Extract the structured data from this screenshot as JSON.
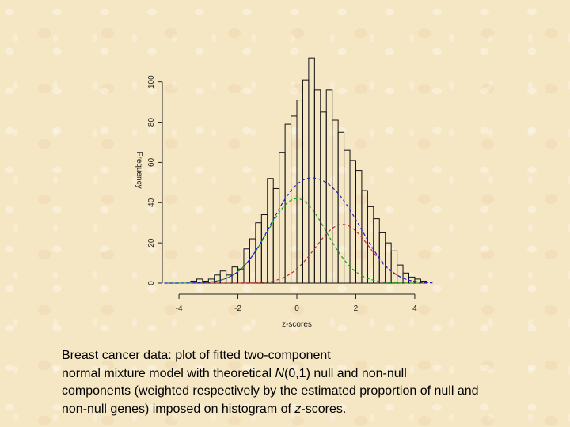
{
  "chart_data": {
    "type": "bar",
    "xlabel": "z-scores",
    "ylabel": "Frequency",
    "xlim": [
      -4.7,
      4.7
    ],
    "ylim": [
      0,
      116
    ],
    "x_ticks": [
      -4,
      -2,
      0,
      2,
      4
    ],
    "y_ticks": [
      0,
      20,
      40,
      60,
      80,
      100
    ],
    "bin_width": 0.2,
    "bins": [
      {
        "start": -3.6,
        "count": 1
      },
      {
        "start": -3.4,
        "count": 2
      },
      {
        "start": -3.2,
        "count": 1
      },
      {
        "start": -3.0,
        "count": 2
      },
      {
        "start": -2.8,
        "count": 4
      },
      {
        "start": -2.6,
        "count": 6
      },
      {
        "start": -2.4,
        "count": 4
      },
      {
        "start": -2.2,
        "count": 8
      },
      {
        "start": -2.0,
        "count": 7
      },
      {
        "start": -1.8,
        "count": 17
      },
      {
        "start": -1.6,
        "count": 22
      },
      {
        "start": -1.4,
        "count": 30
      },
      {
        "start": -1.2,
        "count": 34
      },
      {
        "start": -1.0,
        "count": 52
      },
      {
        "start": -0.8,
        "count": 47
      },
      {
        "start": -0.6,
        "count": 65
      },
      {
        "start": -0.4,
        "count": 79
      },
      {
        "start": -0.2,
        "count": 83
      },
      {
        "start": 0.0,
        "count": 91
      },
      {
        "start": 0.2,
        "count": 101
      },
      {
        "start": 0.4,
        "count": 112
      },
      {
        "start": 0.6,
        "count": 96
      },
      {
        "start": 0.8,
        "count": 85
      },
      {
        "start": 1.0,
        "count": 96
      },
      {
        "start": 1.2,
        "count": 81
      },
      {
        "start": 1.4,
        "count": 75
      },
      {
        "start": 1.6,
        "count": 66
      },
      {
        "start": 1.8,
        "count": 61
      },
      {
        "start": 2.0,
        "count": 56
      },
      {
        "start": 2.2,
        "count": 46
      },
      {
        "start": 2.4,
        "count": 38
      },
      {
        "start": 2.6,
        "count": 32
      },
      {
        "start": 2.8,
        "count": 25
      },
      {
        "start": 3.0,
        "count": 20
      },
      {
        "start": 3.2,
        "count": 16
      },
      {
        "start": 3.4,
        "count": 9
      },
      {
        "start": 3.6,
        "count": 5
      },
      {
        "start": 3.8,
        "count": 3
      },
      {
        "start": 4.0,
        "count": 2
      },
      {
        "start": 4.2,
        "count": 1
      }
    ],
    "curves": [
      {
        "name": "null",
        "color": "#1aa21a",
        "dash": "dashed",
        "weight": 42,
        "mean": 0,
        "sd": 1,
        "x_range": [
          -4.4,
          4.4
        ]
      },
      {
        "name": "non-null",
        "color": "#c0302a",
        "dash": "dashed",
        "weight": 29.2,
        "mean": 1.55,
        "sd": 0.92,
        "x_range": [
          -3.5,
          4.6
        ]
      },
      {
        "name": "mixture",
        "color": "#2020c8",
        "dash": "dashed",
        "x_range": [
          -4.5,
          4.6
        ]
      }
    ]
  },
  "caption": {
    "line1": "Breast cancer data: plot of fitted two-component",
    "line2_a": "normal mixture model with theoretical ",
    "line2_n": "N",
    "line2_b": "(0,1) null and non-null",
    "line3": "components (weighted respectively by the estimated proportion of null and",
    "line4_a": "non-null genes) imposed on histogram of ",
    "line4_z": "z",
    "line4_b": "-scores."
  }
}
